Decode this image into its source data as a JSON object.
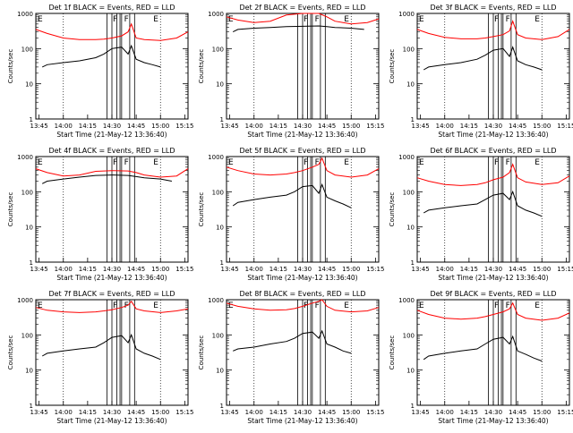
{
  "chart_data": [
    {
      "type": "line",
      "title": "Det 1f BLACK = Events, RED = LLD",
      "xlabel": "Start Time (21-May-12 13:36:40)",
      "ylabel": "Counts/sec",
      "y_scale": "log",
      "ylim": [
        1,
        1000
      ],
      "xlim": [
        "13:43",
        "15:17"
      ],
      "x_ticks": [
        "13:45",
        "14:00",
        "14:15",
        "14:30",
        "14:45",
        "15:00",
        "15:15"
      ],
      "y_ticks": [
        "1",
        "10",
        "100",
        "1000"
      ],
      "grid": "off",
      "markers": [
        "F",
        "F",
        "E"
      ],
      "series": [
        {
          "color": "#ff0000",
          "x": [
            "13:43",
            "13:50",
            "14:00",
            "14:10",
            "14:20",
            "14:25",
            "14:30",
            "14:36",
            "14:40",
            "14:42",
            "14:45",
            "14:50",
            "15:00",
            "15:10",
            "15:17"
          ],
          "values": [
            350,
            270,
            200,
            180,
            180,
            185,
            200,
            230,
            300,
            500,
            200,
            180,
            170,
            200,
            300
          ]
        },
        {
          "color": "#000000",
          "x": [
            "13:47",
            "13:50",
            "14:00",
            "14:10",
            "14:20",
            "14:25",
            "14:30",
            "14:36",
            "14:40",
            "14:42",
            "14:45",
            "14:50",
            "14:55",
            "15:00"
          ],
          "values": [
            30,
            35,
            40,
            45,
            55,
            70,
            100,
            110,
            70,
            120,
            50,
            40,
            35,
            30
          ]
        }
      ]
    },
    {
      "type": "line",
      "title": "Det 2f BLACK = Events, RED = LLD",
      "xlabel": "Start Time (21-May-12 13:36:40)",
      "ylabel": "Counts/sec",
      "y_scale": "log",
      "ylim": [
        1,
        1000
      ],
      "xlim": [
        "13:43",
        "15:17"
      ],
      "x_ticks": [
        "13:45",
        "14:00",
        "14:15",
        "14:30",
        "14:45",
        "15:00",
        "15:15"
      ],
      "y_ticks": [
        "1",
        "10",
        "100",
        "1000"
      ],
      "grid": "off",
      "markers": [
        "F",
        "F",
        "E"
      ],
      "series": [
        {
          "color": "#ff0000",
          "x": [
            "13:43",
            "13:50",
            "14:00",
            "14:10",
            "14:20",
            "14:30",
            "14:40",
            "14:45",
            "14:50",
            "15:00",
            "15:10",
            "15:17"
          ],
          "values": [
            800,
            650,
            550,
            600,
            900,
            1000,
            1000,
            800,
            600,
            500,
            550,
            700
          ]
        },
        {
          "color": "#000000",
          "x": [
            "13:47",
            "13:50",
            "14:00",
            "14:10",
            "14:20",
            "14:30",
            "14:40",
            "14:45",
            "14:50",
            "15:00",
            "15:08"
          ],
          "values": [
            300,
            350,
            380,
            400,
            420,
            430,
            440,
            420,
            400,
            380,
            350
          ]
        }
      ]
    },
    {
      "type": "line",
      "title": "Det 3f BLACK = Events, RED = LLD",
      "xlabel": "Start Time (21-May-12 13:36:40)",
      "ylabel": "Counts/sec",
      "y_scale": "log",
      "ylim": [
        1,
        1000
      ],
      "xlim": [
        "13:43",
        "15:17"
      ],
      "x_ticks": [
        "13:45",
        "14:00",
        "14:15",
        "14:30",
        "14:45",
        "15:00",
        "15:15"
      ],
      "y_ticks": [
        "1",
        "10",
        "100",
        "1000"
      ],
      "grid": "off",
      "markers": [
        "F",
        "F",
        "E"
      ],
      "series": [
        {
          "color": "#ff0000",
          "x": [
            "13:43",
            "13:50",
            "14:00",
            "14:10",
            "14:20",
            "14:25",
            "14:30",
            "14:36",
            "14:40",
            "14:42",
            "14:45",
            "14:50",
            "15:00",
            "15:10",
            "15:17"
          ],
          "values": [
            350,
            270,
            210,
            190,
            190,
            200,
            220,
            250,
            320,
            600,
            250,
            200,
            180,
            220,
            350
          ]
        },
        {
          "color": "#000000",
          "x": [
            "13:47",
            "13:50",
            "14:00",
            "14:10",
            "14:20",
            "14:25",
            "14:30",
            "14:36",
            "14:40",
            "14:42",
            "14:45",
            "14:50",
            "14:55",
            "15:00"
          ],
          "values": [
            25,
            30,
            35,
            40,
            50,
            65,
            90,
            100,
            60,
            110,
            45,
            35,
            30,
            25
          ]
        }
      ]
    },
    {
      "type": "line",
      "title": "Det 4f BLACK = Events, RED = LLD",
      "xlabel": "Start Time (21-May-12 13:36:40)",
      "ylabel": "Counts/sec",
      "y_scale": "log",
      "ylim": [
        1,
        1000
      ],
      "xlim": [
        "13:43",
        "15:17"
      ],
      "x_ticks": [
        "13:45",
        "14:00",
        "14:15",
        "14:30",
        "14:45",
        "15:00",
        "15:15"
      ],
      "y_ticks": [
        "1",
        "10",
        "100",
        "1000"
      ],
      "grid": "off",
      "markers": [
        "F",
        "F",
        "E"
      ],
      "series": [
        {
          "color": "#ff0000",
          "x": [
            "13:43",
            "13:50",
            "14:00",
            "14:10",
            "14:20",
            "14:30",
            "14:40",
            "14:45",
            "14:50",
            "15:00",
            "15:10",
            "15:17"
          ],
          "values": [
            450,
            350,
            280,
            300,
            380,
            400,
            390,
            350,
            300,
            260,
            280,
            450
          ]
        },
        {
          "color": "#000000",
          "x": [
            "13:47",
            "13:50",
            "14:00",
            "14:10",
            "14:20",
            "14:30",
            "14:40",
            "14:45",
            "14:50",
            "15:00",
            "15:07"
          ],
          "values": [
            170,
            200,
            230,
            260,
            290,
            300,
            290,
            270,
            250,
            230,
            200
          ]
        }
      ]
    },
    {
      "type": "line",
      "title": "Det 5f BLACK = Events, RED = LLD",
      "xlabel": "Start Time (21-May-12 13:36:40)",
      "ylabel": "Counts/sec",
      "y_scale": "log",
      "ylim": [
        1,
        1000
      ],
      "xlim": [
        "13:43",
        "15:17"
      ],
      "x_ticks": [
        "13:45",
        "14:00",
        "14:15",
        "14:30",
        "14:45",
        "15:00",
        "15:15"
      ],
      "y_ticks": [
        "1",
        "10",
        "100",
        "1000"
      ],
      "grid": "off",
      "markers": [
        "F",
        "F",
        "E"
      ],
      "series": [
        {
          "color": "#ff0000",
          "x": [
            "13:43",
            "13:50",
            "14:00",
            "14:10",
            "14:20",
            "14:25",
            "14:30",
            "14:36",
            "14:40",
            "14:42",
            "14:45",
            "14:50",
            "15:00",
            "15:10",
            "15:17"
          ],
          "values": [
            500,
            400,
            320,
            300,
            320,
            350,
            400,
            500,
            600,
            900,
            400,
            300,
            260,
            300,
            450
          ]
        },
        {
          "color": "#000000",
          "x": [
            "13:47",
            "13:50",
            "14:00",
            "14:10",
            "14:20",
            "14:25",
            "14:30",
            "14:36",
            "14:40",
            "14:42",
            "14:45",
            "14:50",
            "14:55",
            "15:00"
          ],
          "values": [
            40,
            50,
            60,
            70,
            80,
            100,
            140,
            150,
            90,
            160,
            70,
            55,
            45,
            35
          ]
        }
      ]
    },
    {
      "type": "line",
      "title": "Det 6f BLACK = Events, RED = LLD",
      "xlabel": "Start Time (21-May-12 13:36:40)",
      "ylabel": "Counts/sec",
      "y_scale": "log",
      "ylim": [
        1,
        1000
      ],
      "xlim": [
        "13:43",
        "15:17"
      ],
      "x_ticks": [
        "13:45",
        "14:00",
        "14:15",
        "14:30",
        "14:45",
        "15:00",
        "15:15"
      ],
      "y_ticks": [
        "1",
        "10",
        "100",
        "1000"
      ],
      "grid": "off",
      "markers": [
        "F",
        "F",
        "E"
      ],
      "series": [
        {
          "color": "#ff0000",
          "x": [
            "13:43",
            "13:50",
            "14:00",
            "14:10",
            "14:20",
            "14:25",
            "14:30",
            "14:36",
            "14:40",
            "14:42",
            "14:45",
            "14:50",
            "15:00",
            "15:10",
            "15:17"
          ],
          "values": [
            250,
            200,
            160,
            150,
            160,
            180,
            220,
            260,
            350,
            600,
            250,
            190,
            160,
            180,
            280
          ]
        },
        {
          "color": "#000000",
          "x": [
            "13:47",
            "13:50",
            "14:00",
            "14:10",
            "14:20",
            "14:25",
            "14:30",
            "14:36",
            "14:40",
            "14:42",
            "14:45",
            "14:50",
            "14:55",
            "15:00"
          ],
          "values": [
            25,
            30,
            35,
            40,
            45,
            60,
            80,
            90,
            60,
            100,
            40,
            30,
            25,
            20
          ]
        }
      ]
    },
    {
      "type": "line",
      "title": "Det 7f BLACK = Events, RED = LLD",
      "xlabel": "Start Time (21-May-12 13:36:40)",
      "ylabel": "Counts/sec",
      "y_scale": "log",
      "ylim": [
        1,
        1000
      ],
      "xlim": [
        "13:43",
        "15:17"
      ],
      "x_ticks": [
        "13:45",
        "14:00",
        "14:15",
        "14:30",
        "14:45",
        "15:00",
        "15:15"
      ],
      "y_ticks": [
        "1",
        "10",
        "100",
        "1000"
      ],
      "grid": "off",
      "markers": [
        "F",
        "F",
        "E"
      ],
      "series": [
        {
          "color": "#ff0000",
          "x": [
            "13:43",
            "13:50",
            "14:00",
            "14:10",
            "14:20",
            "14:25",
            "14:30",
            "14:36",
            "14:40",
            "14:42",
            "14:45",
            "14:50",
            "15:00",
            "15:10",
            "15:17"
          ],
          "values": [
            600,
            500,
            450,
            430,
            450,
            480,
            520,
            600,
            700,
            900,
            550,
            480,
            430,
            480,
            550
          ]
        },
        {
          "color": "#000000",
          "x": [
            "13:47",
            "13:50",
            "14:00",
            "14:10",
            "14:20",
            "14:25",
            "14:30",
            "14:36",
            "14:40",
            "14:42",
            "14:45",
            "14:50",
            "14:55",
            "15:00"
          ],
          "values": [
            25,
            30,
            35,
            40,
            45,
            60,
            85,
            95,
            60,
            100,
            40,
            30,
            25,
            20
          ]
        }
      ]
    },
    {
      "type": "line",
      "title": "Det 8f BLACK = Events, RED = LLD",
      "xlabel": "Start Time (21-May-12 13:36:40)",
      "ylabel": "Counts/sec",
      "y_scale": "log",
      "ylim": [
        1,
        1000
      ],
      "xlim": [
        "13:43",
        "15:17"
      ],
      "x_ticks": [
        "13:45",
        "14:00",
        "14:15",
        "14:30",
        "14:45",
        "15:00",
        "15:15"
      ],
      "y_ticks": [
        "1",
        "10",
        "100",
        "1000"
      ],
      "grid": "off",
      "markers": [
        "F",
        "F",
        "E"
      ],
      "series": [
        {
          "color": "#ff0000",
          "x": [
            "13:43",
            "13:50",
            "14:00",
            "14:10",
            "14:20",
            "14:25",
            "14:30",
            "14:36",
            "14:40",
            "14:42",
            "14:45",
            "14:50",
            "15:00",
            "15:10",
            "15:17"
          ],
          "values": [
            800,
            650,
            550,
            500,
            520,
            560,
            650,
            800,
            900,
            1000,
            650,
            500,
            450,
            480,
            600
          ]
        },
        {
          "color": "#000000",
          "x": [
            "13:47",
            "13:50",
            "14:00",
            "14:10",
            "14:20",
            "14:25",
            "14:30",
            "14:36",
            "14:40",
            "14:42",
            "14:45",
            "14:50",
            "14:55",
            "15:00"
          ],
          "values": [
            35,
            40,
            45,
            55,
            65,
            80,
            110,
            120,
            80,
            130,
            55,
            45,
            35,
            30
          ]
        }
      ]
    },
    {
      "type": "line",
      "title": "Det 9f BLACK = Events, RED = LLD",
      "xlabel": "Start Time (21-May-12 13:36:40)",
      "ylabel": "Counts/sec",
      "y_scale": "log",
      "ylim": [
        1,
        1000
      ],
      "xlim": [
        "13:43",
        "15:17"
      ],
      "x_ticks": [
        "13:45",
        "14:00",
        "14:15",
        "14:30",
        "14:45",
        "15:00",
        "15:15"
      ],
      "y_ticks": [
        "1",
        "10",
        "100",
        "1000"
      ],
      "grid": "off",
      "markers": [
        "F",
        "F",
        "E"
      ],
      "series": [
        {
          "color": "#ff0000",
          "x": [
            "13:43",
            "13:50",
            "14:00",
            "14:10",
            "14:20",
            "14:25",
            "14:30",
            "14:36",
            "14:40",
            "14:42",
            "14:45",
            "14:50",
            "15:00",
            "15:10",
            "15:17"
          ],
          "values": [
            500,
            380,
            300,
            280,
            300,
            330,
            380,
            450,
            550,
            800,
            380,
            300,
            260,
            300,
            420
          ]
        },
        {
          "color": "#000000",
          "x": [
            "13:47",
            "13:50",
            "14:00",
            "14:10",
            "14:20",
            "14:25",
            "14:30",
            "14:36",
            "14:40",
            "14:42",
            "14:45",
            "14:50",
            "14:55",
            "15:00"
          ],
          "values": [
            20,
            25,
            30,
            35,
            40,
            55,
            75,
            85,
            55,
            90,
            35,
            28,
            22,
            18
          ]
        }
      ]
    }
  ]
}
